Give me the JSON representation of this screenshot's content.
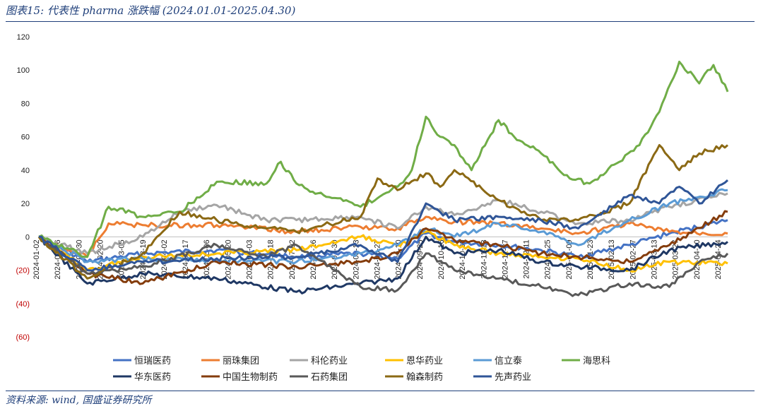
{
  "header": {
    "title": "图表15:  代表性 pharma 涨跌幅 (2024.01.01-2025.04.30)"
  },
  "footer": {
    "source": "资料来源: wind, 国盛证券研究所"
  },
  "chart_data": {
    "type": "line",
    "title": "代表性 pharma 涨跌幅 (2024.01.01-2025.04.30)",
    "xlabel": "",
    "ylabel": "",
    "ylim": [
      -60,
      120
    ],
    "yticks": [
      120,
      100,
      80,
      60,
      40,
      20,
      0,
      -20,
      -40,
      -60
    ],
    "ytick_labels": [
      "120",
      "100",
      "80",
      "60",
      "40",
      "20",
      "0",
      "(20)",
      "(40)",
      "(60)"
    ],
    "xlim": [
      "2024-01-02",
      "2025-04-30"
    ],
    "xtick_labels": [
      "2024-01-02",
      "2024-01-16",
      "2024-01-30",
      "2024-02-20",
      "2024-03-05",
      "2024-03-19",
      "2024-04-02",
      "2024-04-17",
      "2024-05-06",
      "2024-05-20",
      "2024-06-03",
      "2024-06-18",
      "2024-07-02",
      "2024-07-16",
      "2024-07-30",
      "2024-08-13",
      "2024-08-27",
      "2024-09-10",
      "2024-09-25",
      "2024-10-16",
      "2024-10-30",
      "2024-11-13",
      "2024-11-27",
      "2024-12-11",
      "2024-12-25",
      "2025-01-09",
      "2025-01-23",
      "2025-02-13",
      "2025-02-27",
      "2025-03-13",
      "2025-03-27",
      "2025-04-10",
      "2025-04-24"
    ],
    "grid": false,
    "legend_position": "bottom",
    "series": [
      {
        "name": "恒瑞医药",
        "color": "#4472c4",
        "x": [
          "2024-01-02",
          "2024-02-05",
          "2024-03-15",
          "2024-05-06",
          "2024-07-01",
          "2024-08-15",
          "2024-09-10",
          "2024-09-30",
          "2024-10-20",
          "2024-11-20",
          "2024-12-20",
          "2025-01-15",
          "2025-02-20",
          "2025-03-20",
          "2025-04-30"
        ],
        "values": [
          0,
          -15,
          -10,
          -8,
          -12,
          -10,
          -13,
          2,
          -3,
          -5,
          -8,
          -12,
          -5,
          2,
          10
        ]
      },
      {
        "name": "丽珠集团",
        "color": "#ed7d31",
        "x": [
          "2024-01-02",
          "2024-02-05",
          "2024-02-20",
          "2024-03-15",
          "2024-05-06",
          "2024-07-01",
          "2024-08-15",
          "2024-09-10",
          "2024-09-30",
          "2024-10-20",
          "2024-11-20",
          "2024-12-20",
          "2025-01-15",
          "2025-02-20",
          "2025-03-20",
          "2025-04-30"
        ],
        "values": [
          0,
          -12,
          8,
          7,
          7,
          3,
          6,
          5,
          12,
          9,
          8,
          5,
          2,
          8,
          3,
          2
        ]
      },
      {
        "name": "科伦药业",
        "color": "#a5a5a5",
        "x": [
          "2024-01-02",
          "2024-02-05",
          "2024-03-15",
          "2024-04-10",
          "2024-05-06",
          "2024-06-10",
          "2024-07-01",
          "2024-08-15",
          "2024-09-10",
          "2024-09-30",
          "2024-10-20",
          "2024-11-20",
          "2024-12-20",
          "2025-01-15",
          "2025-02-20",
          "2025-03-20",
          "2025-04-30"
        ],
        "values": [
          0,
          -10,
          0,
          15,
          19,
          10,
          10,
          12,
          5,
          18,
          13,
          22,
          15,
          8,
          10,
          18,
          26
        ]
      },
      {
        "name": "恩华药业",
        "color": "#ffc000",
        "x": [
          "2024-01-02",
          "2024-02-05",
          "2024-03-15",
          "2024-05-06",
          "2024-07-01",
          "2024-08-15",
          "2024-09-10",
          "2024-09-30",
          "2024-10-20",
          "2024-11-20",
          "2024-12-20",
          "2025-01-15",
          "2025-02-20",
          "2025-03-20",
          "2025-04-30"
        ],
        "values": [
          0,
          -20,
          -12,
          -10,
          -8,
          0,
          -5,
          3,
          -5,
          -10,
          -12,
          -13,
          -20,
          -15,
          -16
        ]
      },
      {
        "name": "信立泰",
        "color": "#5b9bd5",
        "x": [
          "2024-01-02",
          "2024-02-05",
          "2024-03-15",
          "2024-05-06",
          "2024-07-01",
          "2024-08-15",
          "2024-09-10",
          "2024-09-30",
          "2024-10-20",
          "2024-11-20",
          "2024-12-20",
          "2025-01-15",
          "2025-02-20",
          "2025-03-20",
          "2025-04-30"
        ],
        "values": [
          0,
          -15,
          -13,
          -14,
          -15,
          -10,
          -5,
          5,
          0,
          8,
          3,
          -5,
          10,
          20,
          28
        ]
      },
      {
        "name": "海思科",
        "color": "#70ad47",
        "x": [
          "2024-01-02",
          "2024-02-05",
          "2024-02-20",
          "2024-03-15",
          "2024-04-10",
          "2024-05-06",
          "2024-06-10",
          "2024-06-20",
          "2024-07-01",
          "2024-07-20",
          "2024-08-15",
          "2024-09-10",
          "2024-09-20",
          "2024-09-30",
          "2024-10-10",
          "2024-10-20",
          "2024-11-01",
          "2024-11-20",
          "2024-12-01",
          "2024-12-20",
          "2025-01-09",
          "2025-01-23",
          "2025-02-13",
          "2025-02-27",
          "2025-03-13",
          "2025-03-27",
          "2025-04-10",
          "2025-04-20",
          "2025-04-30"
        ],
        "values": [
          0,
          -12,
          18,
          12,
          15,
          33,
          32,
          45,
          32,
          25,
          18,
          30,
          40,
          72,
          60,
          55,
          40,
          70,
          60,
          50,
          35,
          32,
          45,
          55,
          75,
          105,
          92,
          103,
          87
        ]
      },
      {
        "name": "华东医药",
        "color": "#1f3864",
        "x": [
          "2024-01-02",
          "2024-02-05",
          "2024-03-15",
          "2024-05-06",
          "2024-07-01",
          "2024-08-15",
          "2024-09-10",
          "2024-09-30",
          "2024-10-20",
          "2024-11-20",
          "2024-12-20",
          "2025-01-15",
          "2025-02-20",
          "2025-03-20",
          "2025-04-30"
        ],
        "values": [
          0,
          -28,
          -22,
          -25,
          -33,
          -28,
          -25,
          0,
          -10,
          -8,
          -15,
          -18,
          -20,
          -8,
          -3
        ]
      },
      {
        "name": "中国生物制药",
        "color": "#843c0c",
        "x": [
          "2024-01-02",
          "2024-02-05",
          "2024-03-15",
          "2024-05-06",
          "2024-07-01",
          "2024-08-15",
          "2024-09-10",
          "2024-09-30",
          "2024-10-20",
          "2024-11-20",
          "2024-12-20",
          "2025-01-15",
          "2025-02-20",
          "2025-03-20",
          "2025-04-30"
        ],
        "values": [
          0,
          -22,
          -28,
          -15,
          -18,
          -15,
          -10,
          5,
          -2,
          -5,
          -10,
          -12,
          -15,
          -5,
          15
        ]
      },
      {
        "name": "石药集团",
        "color": "#595959",
        "x": [
          "2024-01-02",
          "2024-02-05",
          "2024-03-15",
          "2024-05-06",
          "2024-06-10",
          "2024-07-01",
          "2024-08-15",
          "2024-09-10",
          "2024-09-30",
          "2024-10-20",
          "2024-11-20",
          "2024-12-20",
          "2025-01-15",
          "2025-02-20",
          "2025-03-20",
          "2025-04-10",
          "2025-04-30"
        ],
        "values": [
          0,
          -22,
          -18,
          -5,
          -12,
          -5,
          -30,
          -32,
          -10,
          -20,
          -25,
          -30,
          -35,
          -28,
          -30,
          -15,
          -10
        ]
      },
      {
        "name": "翰森制药",
        "color": "#8b6914",
        "x": [
          "2024-01-02",
          "2024-02-05",
          "2024-03-15",
          "2024-04-10",
          "2024-05-06",
          "2024-06-10",
          "2024-07-01",
          "2024-08-15",
          "2024-08-27",
          "2024-09-10",
          "2024-09-30",
          "2024-10-10",
          "2024-10-20",
          "2024-11-20",
          "2024-12-20",
          "2025-01-15",
          "2025-02-20",
          "2025-03-13",
          "2025-03-27",
          "2025-04-10",
          "2025-04-30"
        ],
        "values": [
          0,
          -25,
          -10,
          15,
          10,
          5,
          3,
          12,
          35,
          28,
          38,
          30,
          40,
          22,
          10,
          10,
          20,
          55,
          40,
          50,
          55
        ]
      },
      {
        "name": "先声药业",
        "color": "#2f5597",
        "x": [
          "2024-01-02",
          "2024-02-05",
          "2024-03-15",
          "2024-05-06",
          "2024-07-01",
          "2024-08-15",
          "2024-09-10",
          "2024-09-30",
          "2024-10-20",
          "2024-11-20",
          "2024-12-20",
          "2025-01-15",
          "2025-02-20",
          "2025-03-13",
          "2025-03-27",
          "2025-04-10",
          "2025-04-30"
        ],
        "values": [
          0,
          -20,
          -15,
          -13,
          -12,
          -5,
          -15,
          20,
          10,
          12,
          10,
          5,
          25,
          20,
          30,
          20,
          34
        ]
      }
    ]
  }
}
